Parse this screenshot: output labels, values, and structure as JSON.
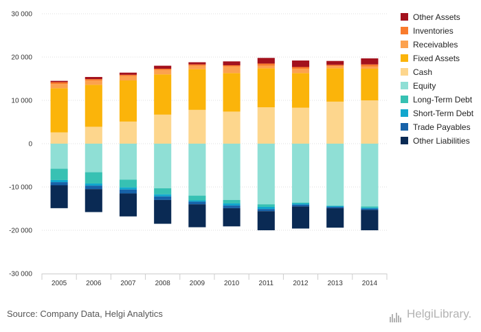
{
  "source": "Source: Company Data, Helgi Analytics",
  "brand": "HelgiLibrary.",
  "chart_data": {
    "type": "bar",
    "stacked": true,
    "categories": [
      "2005",
      "2006",
      "2007",
      "2008",
      "2009",
      "2010",
      "2011",
      "2012",
      "2013",
      "2014"
    ],
    "ylim": [
      -30000,
      30000
    ],
    "yticks": [
      -30000,
      -20000,
      -10000,
      0,
      10000,
      20000,
      30000
    ],
    "ytick_labels": [
      "-30 000",
      "-20 000",
      "-10 000",
      "0",
      "10 000",
      "20 000",
      "30 000"
    ],
    "grid": true,
    "legend_position": "right",
    "series": [
      {
        "name": "Other Assets",
        "color": "#a3111d",
        "values": [
          300,
          500,
          500,
          700,
          500,
          900,
          1300,
          1500,
          900,
          1400
        ]
      },
      {
        "name": "Inventories",
        "color": "#f97b2c",
        "values": [
          400,
          300,
          300,
          300,
          300,
          300,
          500,
          400,
          300,
          500
        ]
      },
      {
        "name": "Receivables",
        "color": "#fca24f",
        "values": [
          1000,
          1000,
          1000,
          1000,
          800,
          1500,
          600,
          1000,
          500,
          500
        ]
      },
      {
        "name": "Fixed Assets",
        "color": "#fbb40a",
        "values": [
          10200,
          9700,
          9500,
          9300,
          9400,
          8900,
          9000,
          8000,
          7700,
          7300
        ]
      },
      {
        "name": "Cash",
        "color": "#fdd68d",
        "values": [
          2600,
          3900,
          5100,
          6700,
          7800,
          7400,
          8400,
          8300,
          9700,
          10000
        ]
      },
      {
        "name": "Equity",
        "color": "#8fdfd5",
        "values": [
          -5800,
          -6600,
          -8300,
          -10300,
          -12000,
          -13000,
          -14000,
          -13600,
          -14300,
          -14500
        ]
      },
      {
        "name": "Long-Term Debt",
        "color": "#37c1b3",
        "values": [
          -2600,
          -2600,
          -1800,
          -1400,
          -1100,
          -800,
          -600,
          -200,
          -100,
          -300
        ]
      },
      {
        "name": "Short-Term Debt",
        "color": "#11a6cd",
        "values": [
          -500,
          -500,
          -500,
          -500,
          -300,
          -500,
          -500,
          -300,
          -200,
          -200
        ]
      },
      {
        "name": "Trade Payables",
        "color": "#1762a8",
        "values": [
          -700,
          -800,
          -900,
          -800,
          -600,
          -600,
          -500,
          -400,
          -300,
          -300
        ]
      },
      {
        "name": "Other Liabilities",
        "color": "#0a2a54",
        "values": [
          -5300,
          -5300,
          -5300,
          -5500,
          -5300,
          -4200,
          -4400,
          -5100,
          -4500,
          -4700
        ]
      }
    ]
  }
}
